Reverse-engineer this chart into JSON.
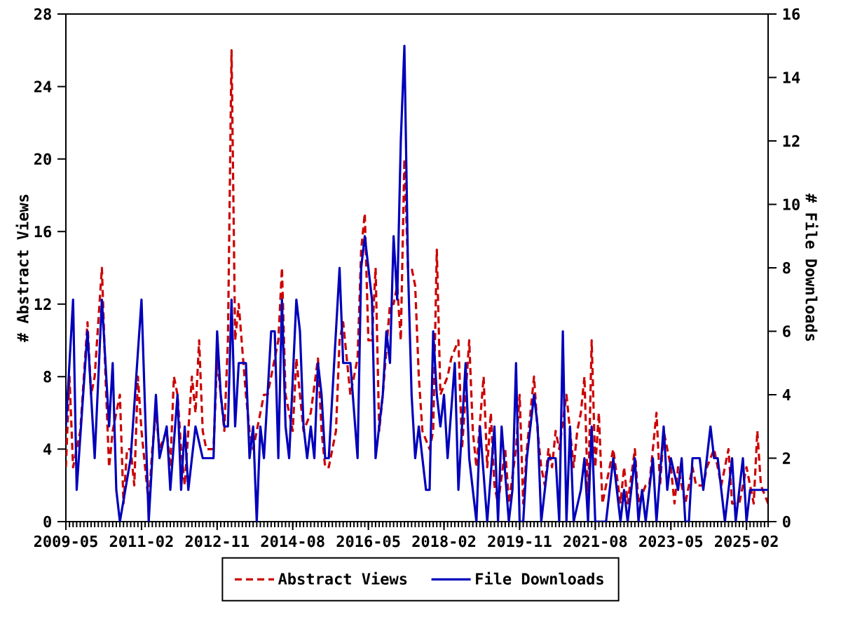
{
  "chart_data": {
    "type": "line",
    "ylabel": "# Abstract Views",
    "y2label": "# File Downloads",
    "xlim": [
      "2009-05",
      "2025-08"
    ],
    "xticks": [
      "2009-05",
      "2011-02",
      "2012-11",
      "2014-08",
      "2016-05",
      "2018-02",
      "2019-11",
      "2021-08",
      "2023-05",
      "2025-02"
    ],
    "ylim": [
      0,
      28
    ],
    "yticks": [
      0,
      4,
      8,
      12,
      16,
      20,
      24,
      28
    ],
    "y2lim": [
      0,
      16
    ],
    "y2ticks": [
      0,
      2,
      4,
      6,
      8,
      10,
      12,
      14,
      16
    ],
    "legend": "bottom",
    "marker": "none",
    "series": [
      {
        "name": "Abstract Views",
        "color": "#cc0000",
        "line_style": "dashed",
        "axis": "y",
        "x": [
          "2009-05",
          "2009-06",
          "2009-07",
          "2009-09",
          "2009-11",
          "2009-12",
          "2010-01",
          "2010-03",
          "2010-04",
          "2010-05",
          "2010-06",
          "2010-08",
          "2010-09",
          "2010-10",
          "2010-11",
          "2010-12",
          "2011-01",
          "2011-02",
          "2011-04",
          "2011-05",
          "2011-06",
          "2011-07",
          "2011-09",
          "2011-10",
          "2011-11",
          "2011-12",
          "2012-01",
          "2012-02",
          "2012-04",
          "2012-05",
          "2012-06",
          "2012-07",
          "2012-08",
          "2012-10",
          "2012-11",
          "2012-12",
          "2013-01",
          "2013-02",
          "2013-03",
          "2013-04",
          "2013-05",
          "2013-07",
          "2013-08",
          "2013-09",
          "2013-11",
          "2013-12",
          "2014-01",
          "2014-02",
          "2014-04",
          "2014-05",
          "2014-06",
          "2014-08",
          "2014-09",
          "2014-11",
          "2015-01",
          "2015-03",
          "2015-04",
          "2015-05",
          "2015-06",
          "2015-08",
          "2015-09",
          "2015-10",
          "2015-12",
          "2016-02",
          "2016-03",
          "2016-04",
          "2016-05",
          "2016-06",
          "2016-07",
          "2016-08",
          "2016-09",
          "2016-11",
          "2016-12",
          "2017-01",
          "2017-02",
          "2017-03",
          "2017-04",
          "2017-05",
          "2017-06",
          "2017-07",
          "2017-08",
          "2017-10",
          "2017-11",
          "2017-12",
          "2018-01",
          "2018-03",
          "2018-04",
          "2018-06",
          "2018-07",
          "2018-08",
          "2018-09",
          "2018-10",
          "2018-11",
          "2019-01",
          "2019-02",
          "2019-03",
          "2019-04",
          "2019-05",
          "2019-07",
          "2019-08",
          "2019-10",
          "2019-11",
          "2019-12",
          "2020-01",
          "2020-03",
          "2020-04",
          "2020-05",
          "2020-06",
          "2020-07",
          "2020-08",
          "2020-09",
          "2020-10",
          "2020-12",
          "2021-02",
          "2021-03",
          "2021-04",
          "2021-05",
          "2021-06",
          "2021-07",
          "2021-08",
          "2021-09",
          "2021-10",
          "2022-01",
          "2022-03",
          "2022-04",
          "2022-05",
          "2022-07",
          "2022-08",
          "2022-10",
          "2022-11",
          "2023-01",
          "2023-02",
          "2023-03",
          "2023-05",
          "2023-06",
          "2023-07",
          "2023-09",
          "2023-11",
          "2023-12",
          "2024-02",
          "2024-03",
          "2024-05",
          "2024-07",
          "2024-09",
          "2024-10",
          "2024-12",
          "2025-02",
          "2025-04",
          "2025-05",
          "2025-06",
          "2025-08"
        ],
        "values": [
          3,
          8,
          3,
          5,
          11,
          7,
          8,
          14,
          8,
          3,
          5,
          7,
          1,
          4,
          4,
          2,
          8,
          5,
          1,
          4,
          6,
          4,
          5,
          3,
          8,
          7,
          4,
          2,
          8,
          6,
          10,
          5,
          4,
          4,
          9,
          7,
          5,
          10,
          26,
          10,
          12,
          7,
          5,
          4,
          6,
          7,
          7,
          8,
          10,
          14,
          7,
          5,
          9,
          5,
          6,
          9,
          5,
          3,
          3,
          5,
          10,
          11,
          7,
          9,
          15,
          17,
          10,
          10,
          14,
          5,
          7,
          12,
          12,
          13,
          10,
          20,
          14,
          14,
          13,
          8,
          5,
          4,
          5,
          15,
          7,
          8,
          9,
          10,
          4,
          7,
          10,
          5,
          3,
          8,
          3,
          6,
          2,
          1,
          4,
          1,
          4,
          7,
          1,
          4,
          8,
          5,
          3,
          2,
          4,
          3,
          5,
          4,
          7,
          3,
          5,
          6,
          8,
          1,
          10,
          3,
          6,
          1,
          4,
          1,
          3,
          1,
          4,
          1,
          2,
          2,
          6,
          2,
          5,
          3,
          1,
          3,
          1,
          3,
          2,
          2,
          3,
          4,
          2,
          4,
          1,
          1,
          3,
          1,
          5,
          2,
          1
        ]
      },
      {
        "name": "File Downloads",
        "color": "#0000bb",
        "line_style": "solid",
        "axis": "y2",
        "x": [
          "2009-05",
          "2009-07",
          "2009-08",
          "2009-11",
          "2010-01",
          "2010-03",
          "2010-05",
          "2010-06",
          "2010-07",
          "2010-08",
          "2010-11",
          "2011-02",
          "2011-04",
          "2011-06",
          "2011-07",
          "2011-09",
          "2011-10",
          "2011-12",
          "2012-01",
          "2012-02",
          "2012-03",
          "2012-05",
          "2012-07",
          "2012-10",
          "2012-11",
          "2012-12",
          "2013-01",
          "2013-02",
          "2013-03",
          "2013-04",
          "2013-05",
          "2013-07",
          "2013-08",
          "2013-09",
          "2013-10",
          "2013-11",
          "2013-12",
          "2014-02",
          "2014-03",
          "2014-04",
          "2014-05",
          "2014-06",
          "2014-07",
          "2014-09",
          "2014-10",
          "2014-11",
          "2014-12",
          "2015-01",
          "2015-02",
          "2015-03",
          "2015-04",
          "2015-05",
          "2015-06",
          "2015-08",
          "2015-09",
          "2015-10",
          "2015-11",
          "2015-12",
          "2016-02",
          "2016-03",
          "2016-04",
          "2016-05",
          "2016-06",
          "2016-07",
          "2016-09",
          "2016-10",
          "2016-11",
          "2016-12",
          "2017-01",
          "2017-02",
          "2017-03",
          "2017-04",
          "2017-05",
          "2017-06",
          "2017-07",
          "2017-08",
          "2017-09",
          "2017-10",
          "2017-11",
          "2017-12",
          "2018-01",
          "2018-02",
          "2018-03",
          "2018-05",
          "2018-06",
          "2018-08",
          "2018-09",
          "2018-11",
          "2018-12",
          "2019-02",
          "2019-04",
          "2019-05",
          "2019-06",
          "2019-08",
          "2019-09",
          "2019-10",
          "2019-11",
          "2019-12",
          "2020-01",
          "2020-03",
          "2020-04",
          "2020-05",
          "2020-07",
          "2020-09",
          "2020-10",
          "2020-11",
          "2020-12",
          "2021-01",
          "2021-02",
          "2021-04",
          "2021-05",
          "2021-06",
          "2021-07",
          "2021-08",
          "2021-09",
          "2021-11",
          "2022-01",
          "2022-03",
          "2022-04",
          "2022-05",
          "2022-07",
          "2022-08",
          "2022-09",
          "2022-10",
          "2022-12",
          "2023-01",
          "2023-03",
          "2023-04",
          "2023-05",
          "2023-07",
          "2023-08",
          "2023-09",
          "2023-10",
          "2023-11",
          "2024-01",
          "2024-02",
          "2024-04",
          "2024-05",
          "2024-06",
          "2024-08",
          "2024-10",
          "2024-11",
          "2025-01",
          "2025-02",
          "2025-03",
          "2025-08"
        ],
        "values": [
          3,
          7,
          1,
          6,
          2,
          7,
          3,
          5,
          1,
          0,
          2,
          7,
          0,
          4,
          2,
          3,
          1,
          4,
          1,
          3,
          1,
          3,
          2,
          2,
          6,
          4,
          3,
          3,
          7,
          3,
          5,
          5,
          2,
          3,
          0,
          3,
          2,
          6,
          6,
          2,
          7,
          3,
          2,
          7,
          6,
          3,
          2,
          3,
          2,
          5,
          4,
          2,
          2,
          6,
          8,
          5,
          5,
          5,
          2,
          8,
          9,
          8,
          7,
          2,
          4,
          6,
          5,
          9,
          7,
          12,
          15,
          8,
          4,
          2,
          3,
          2,
          1,
          1,
          6,
          4,
          3,
          4,
          2,
          5,
          1,
          5,
          2,
          0,
          3,
          0,
          3,
          0,
          3,
          0,
          1,
          5,
          0,
          0,
          2,
          4,
          3,
          0,
          2,
          2,
          0,
          6,
          0,
          3,
          0,
          1,
          2,
          0,
          3,
          0,
          0,
          0,
          2,
          0,
          1,
          0,
          2,
          0,
          1,
          0,
          2,
          0,
          3,
          1,
          2,
          1,
          2,
          0,
          0,
          2,
          2,
          1,
          3,
          2,
          2,
          0,
          2,
          0,
          2,
          0,
          1,
          1
        ]
      }
    ]
  }
}
